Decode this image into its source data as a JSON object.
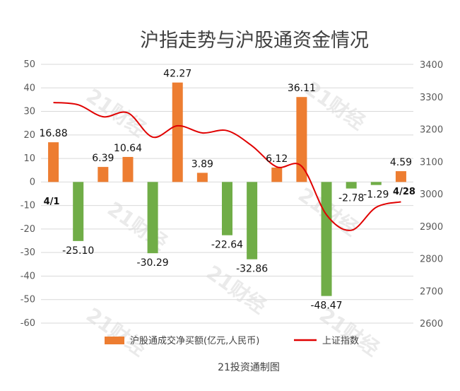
{
  "chart_data": {
    "type": "bar+line",
    "title": "沪指走势与沪股通资金情况",
    "source_note": "21投资通制图",
    "watermark": "21财经",
    "colors": {
      "positive_bar": "#ED7D31",
      "negative_bar": "#70AD47",
      "line": "#E00000",
      "grid": "#D9D9D9"
    },
    "left_axis": {
      "ylim": [
        -60,
        50
      ],
      "ticks": [
        50,
        40,
        30,
        20,
        10,
        0,
        -10,
        -20,
        -30,
        -40,
        -50,
        -60
      ]
    },
    "right_axis": {
      "ylim": [
        2600,
        3400
      ],
      "ticks": [
        3400,
        3300,
        3200,
        3100,
        3000,
        2900,
        2800,
        2700,
        2600
      ]
    },
    "grid": true,
    "legend_position": "bottom",
    "series": [
      {
        "name": "沪股通成交净买额(亿元,人民币)",
        "type": "bar",
        "values": [
          16.88,
          -25.1,
          6.39,
          10.64,
          -30.29,
          42.27,
          3.89,
          -22.64,
          -32.86,
          6.12,
          36.11,
          -48.47,
          -2.78,
          -1.29,
          4.59
        ],
        "labels": [
          "16.88",
          "-25.10",
          "6.39",
          "10.64",
          "-30.29",
          "42.27",
          "3.89",
          "-22.64",
          "-32.86",
          "6.12",
          "36.11",
          "-48.47",
          "-2.78",
          "-1.29",
          "4.59"
        ]
      },
      {
        "name": "上证指数",
        "type": "line",
        "values": [
          3282,
          3275,
          3238,
          3250,
          3175,
          3210,
          3188,
          3195,
          3148,
          3083,
          3085,
          2935,
          2887,
          2958,
          2975
        ]
      }
    ],
    "date_labels": {
      "start": "4/1",
      "end": "4/28"
    }
  }
}
